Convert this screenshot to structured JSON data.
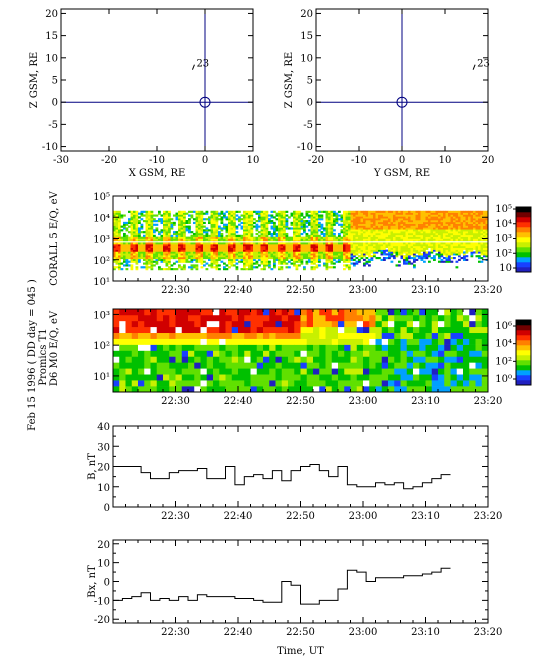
{
  "colors": {
    "orbit_axes": "#000080",
    "palette": [
      "#ffffff",
      "#2020c0",
      "#1840ff",
      "#00a0ff",
      "#00c000",
      "#60e000",
      "#c8f000",
      "#ffff00",
      "#ffc000",
      "#ff8000",
      "#ff3000",
      "#d00000",
      "#700000",
      "#000000"
    ]
  },
  "global": {
    "date_label": "Feb 15 1996  ( DD day = 045 )",
    "xlabel": "Time, UT",
    "time_ticks": [
      "22:30",
      "22:40",
      "22:50",
      "23:00",
      "23:10",
      "23:20"
    ]
  },
  "chart_data": [
    {
      "id": "orbit_xz",
      "type": "scatter",
      "xlabel": "X GSM, RE",
      "ylabel": "Z GSM, RE",
      "xlim": [
        -30,
        10
      ],
      "ylim": [
        -11,
        21
      ],
      "x_ticks": [
        "-30",
        "-20",
        "-10",
        "0",
        "10"
      ],
      "y_ticks": [
        "-10",
        "-5",
        "0",
        "5",
        "10",
        "15",
        "20"
      ],
      "points": [
        {
          "x": -2.2,
          "y": 8.0,
          "label": "23"
        }
      ]
    },
    {
      "id": "orbit_yz",
      "type": "scatter",
      "xlabel": "Y GSM, RE",
      "ylabel": "Z GSM, RE",
      "xlim": [
        -20,
        20
      ],
      "ylim": [
        -11,
        21
      ],
      "x_ticks": [
        "-20",
        "-10",
        "0",
        "10",
        "20"
      ],
      "y_ticks": [
        "-10",
        "-5",
        "0",
        "5",
        "10",
        "15",
        "20"
      ],
      "points": [
        {
          "x": 17.0,
          "y": 8.0,
          "label": "23"
        }
      ]
    },
    {
      "id": "corall",
      "type": "heatmap",
      "ylabel": "CORALL 5 E/Q, eV",
      "ylog": true,
      "ylim": [
        10,
        100000
      ],
      "y_ticks": [
        "10¹",
        "10²",
        "10³",
        "10⁴",
        "10⁵"
      ],
      "colorbar_ticks": [
        "10",
        "10²",
        "10³",
        "10⁴",
        "10⁵"
      ],
      "x_ticks": [
        "22:30",
        "22:40",
        "22:50",
        "23:00",
        "23:10",
        "23:20"
      ]
    },
    {
      "id": "promics",
      "type": "heatmap",
      "ylabel": "D6 M0 E/Q, eV",
      "ylabel2": "Promics T1",
      "ylog": true,
      "ylim": [
        3,
        1500
      ],
      "y_ticks": [
        "10¹",
        "10²",
        "10³"
      ],
      "colorbar_ticks": [
        "10⁰",
        "10²",
        "10⁴",
        "10⁶"
      ],
      "x_ticks": [
        "22:30",
        "22:40",
        "22:50",
        "23:00",
        "23:10",
        "23:20"
      ]
    },
    {
      "id": "b_total",
      "type": "line",
      "ylabel": "B, nT",
      "ylim": [
        0,
        40
      ],
      "y_ticks": [
        "0",
        "10",
        "20",
        "30",
        "40"
      ],
      "x_ticks": [
        "22:30",
        "22:40",
        "22:50",
        "23:00",
        "23:10",
        "23:20"
      ],
      "step_minutes": 1.5,
      "start": "22:20",
      "values": [
        20,
        20,
        20,
        17,
        14,
        14,
        17,
        18,
        18,
        19,
        14,
        14,
        20,
        11,
        15,
        16,
        14,
        18,
        13,
        18,
        20,
        21,
        18,
        15,
        20,
        11,
        10,
        10,
        12,
        11,
        12,
        9,
        10,
        12,
        14,
        16
      ]
    },
    {
      "id": "bx",
      "type": "line",
      "ylabel": "Bx, nT",
      "ylim": [
        -22,
        22
      ],
      "y_ticks": [
        "-20",
        "-10",
        "0",
        "10",
        "20"
      ],
      "x_ticks": [
        "22:30",
        "22:40",
        "22:50",
        "23:00",
        "23:10",
        "23:20"
      ],
      "step_minutes": 1.5,
      "start": "22:20",
      "values": [
        -10,
        -9,
        -8,
        -6,
        -10,
        -9,
        -10,
        -8,
        -10,
        -7,
        -8,
        -8,
        -8,
        -9,
        -9,
        -10,
        -11,
        -11,
        0,
        -2,
        -12,
        -12,
        -10,
        -10,
        -4,
        6,
        5,
        0,
        2,
        2,
        2,
        3,
        3,
        4,
        5,
        7
      ]
    }
  ]
}
